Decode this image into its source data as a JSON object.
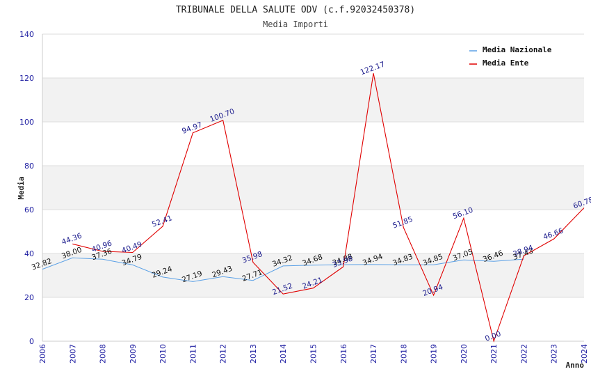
{
  "chart_data": {
    "type": "line",
    "title": "TRIBUNALE DELLA SALUTE ODV (c.f.92032450378)",
    "subtitle": "Media Importi",
    "xlabel": "Anno",
    "ylabel": "Media",
    "ylim": [
      0,
      140
    ],
    "yticks": [
      0,
      20,
      40,
      60,
      80,
      100,
      120,
      140
    ],
    "categories": [
      "2006",
      "2007",
      "2008",
      "2009",
      "2010",
      "2011",
      "2012",
      "2013",
      "2014",
      "2015",
      "2016",
      "2017",
      "2018",
      "2019",
      "2020",
      "2021",
      "2022",
      "2023",
      "2024"
    ],
    "grid": true,
    "legend_position": "top-right",
    "series": [
      {
        "name": "Media Nazionale",
        "color": "#5aa0e6",
        "label_color": "#111111",
        "values": [
          32.82,
          38.0,
          37.36,
          34.79,
          29.24,
          27.19,
          29.43,
          27.71,
          34.32,
          34.68,
          34.88,
          34.94,
          34.83,
          34.85,
          37.05,
          36.46,
          37.43,
          null,
          null
        ],
        "labels": [
          "32.82",
          "38.00",
          "37.36",
          "34.79",
          "29.24",
          "27.19",
          "29.43",
          "27.71",
          "34.32",
          "34.68",
          "34.88",
          "34.94",
          "34.83",
          "34.85",
          "37.05",
          "36.46",
          "37.43",
          "",
          ""
        ]
      },
      {
        "name": "Media Ente",
        "color": "#e00000",
        "label_color": "#1a1a8c",
        "values": [
          null,
          44.36,
          40.96,
          40.49,
          52.41,
          94.97,
          100.7,
          35.98,
          21.52,
          24.21,
          33.98,
          122.17,
          51.85,
          20.94,
          56.1,
          0.0,
          38.94,
          46.66,
          60.78
        ],
        "labels": [
          "",
          "44.36",
          "40.96",
          "40.49",
          "52.41",
          "94.97",
          "100.70",
          "35.98",
          "21.52",
          "24.21",
          "33.98",
          "122.17",
          "51.85",
          "20.94",
          "56.10",
          "0.00",
          "38.94",
          "46.66",
          "60.78"
        ]
      }
    ]
  }
}
